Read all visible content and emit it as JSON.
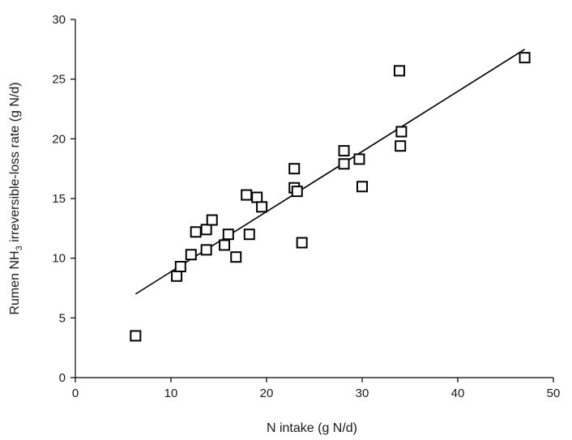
{
  "chart_data": {
    "type": "scatter",
    "title": "",
    "xlabel": "N intake (g N/d)",
    "ylabel_parts": [
      "Rumen NH",
      "3",
      " irreversible-loss rate (g N/d)"
    ],
    "xlim": [
      0,
      50
    ],
    "ylim": [
      0,
      30
    ],
    "x_ticks": [
      0,
      10,
      20,
      30,
      40,
      50
    ],
    "y_ticks": [
      0,
      5,
      10,
      15,
      20,
      25,
      30
    ],
    "grid": false,
    "points": [
      {
        "x": 6.3,
        "y": 3.5
      },
      {
        "x": 10.6,
        "y": 8.5
      },
      {
        "x": 11.0,
        "y": 9.3
      },
      {
        "x": 12.1,
        "y": 10.3
      },
      {
        "x": 12.6,
        "y": 12.2
      },
      {
        "x": 13.7,
        "y": 12.4
      },
      {
        "x": 13.7,
        "y": 10.7
      },
      {
        "x": 14.3,
        "y": 13.2
      },
      {
        "x": 15.6,
        "y": 11.1
      },
      {
        "x": 16.0,
        "y": 12.0
      },
      {
        "x": 16.8,
        "y": 10.1
      },
      {
        "x": 17.9,
        "y": 15.3
      },
      {
        "x": 18.2,
        "y": 12.0
      },
      {
        "x": 19.0,
        "y": 15.1
      },
      {
        "x": 19.5,
        "y": 14.3
      },
      {
        "x": 22.9,
        "y": 17.5
      },
      {
        "x": 22.9,
        "y": 15.9
      },
      {
        "x": 23.2,
        "y": 15.6
      },
      {
        "x": 23.7,
        "y": 11.3
      },
      {
        "x": 28.1,
        "y": 19.0
      },
      {
        "x": 28.1,
        "y": 17.9
      },
      {
        "x": 29.7,
        "y": 18.3
      },
      {
        "x": 30.0,
        "y": 16.0
      },
      {
        "x": 33.9,
        "y": 25.7
      },
      {
        "x": 34.0,
        "y": 19.4
      },
      {
        "x": 34.1,
        "y": 20.6
      },
      {
        "x": 47.0,
        "y": 26.8
      }
    ],
    "fit_line": [
      {
        "x": 6.3,
        "y": 7.0
      },
      {
        "x": 47.0,
        "y": 27.5
      }
    ]
  }
}
